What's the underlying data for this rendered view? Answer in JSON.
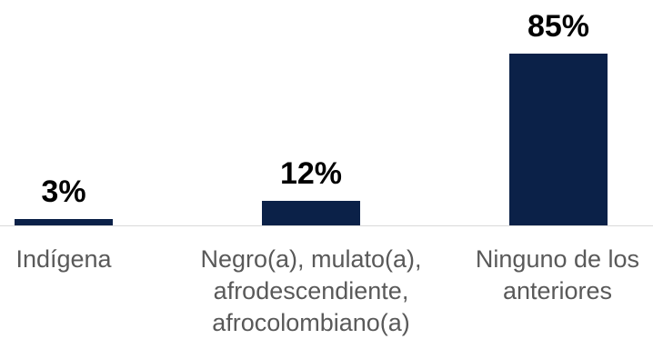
{
  "chart_data": {
    "type": "bar",
    "categories": [
      "Indígena",
      "Negro(a), mulato(a),\nafrodescendiente,\nafrocolombiano(a)",
      "Ninguno de los\nanteriores"
    ],
    "values": [
      3,
      12,
      85
    ],
    "data_labels": [
      "3%",
      "12%",
      "85%"
    ],
    "title": "",
    "xlabel": "",
    "ylabel": "",
    "ylim": [
      0,
      100
    ],
    "grid": false,
    "legend": "none",
    "bar_color": "#0b2148"
  }
}
